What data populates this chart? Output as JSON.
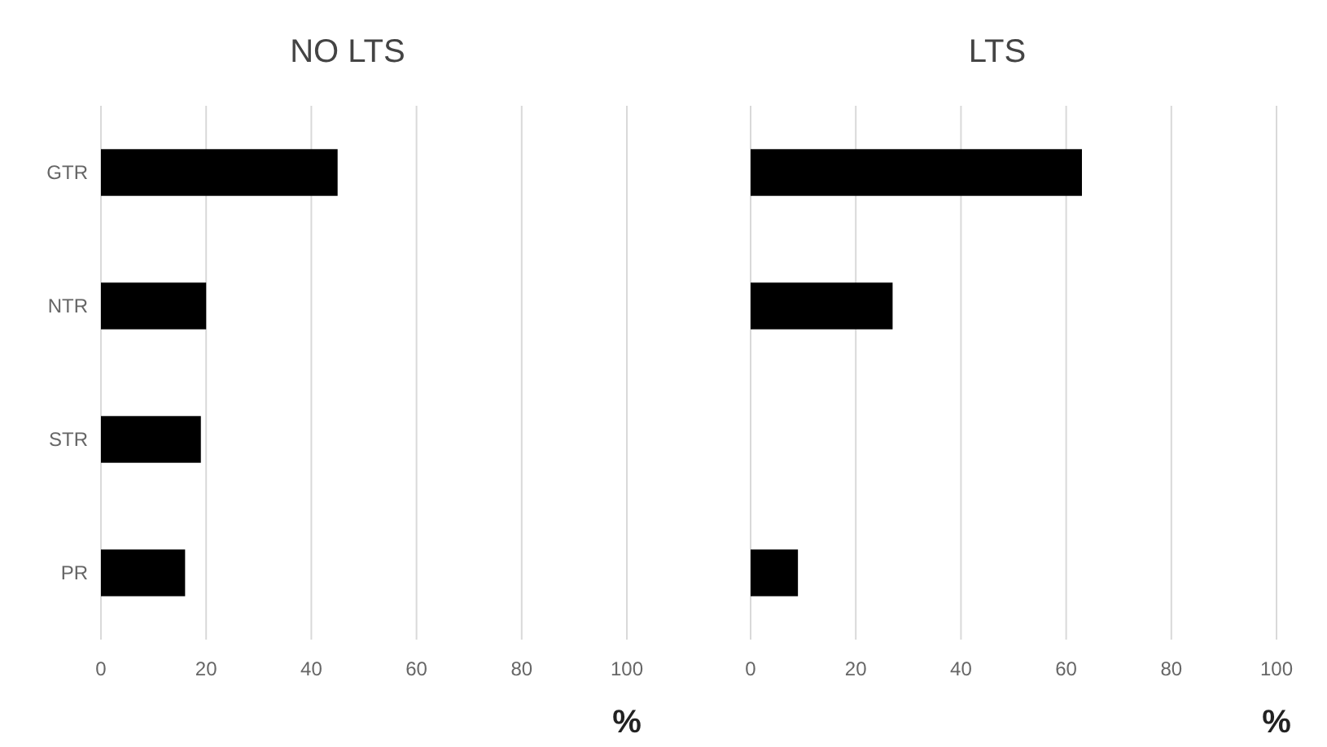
{
  "chart_data": [
    {
      "type": "bar",
      "orientation": "horizontal",
      "title": "NO LTS",
      "xlabel": "%",
      "categories": [
        "GTR",
        "NTR",
        "STR",
        "PR"
      ],
      "values": [
        45,
        20,
        19,
        16
      ],
      "color": "#000000",
      "xlim": [
        0,
        100
      ],
      "xticks": [
        0,
        20,
        40,
        60,
        80,
        100
      ],
      "grid": "x"
    },
    {
      "type": "bar",
      "orientation": "horizontal",
      "title": "LTS",
      "xlabel": "%",
      "categories": [
        null,
        null,
        null,
        null
      ],
      "values": [
        63,
        27,
        0,
        9
      ],
      "color": "#000000",
      "xlim": [
        0,
        100
      ],
      "xticks": [
        0,
        20,
        40,
        60,
        80,
        100
      ],
      "grid": "x"
    }
  ]
}
